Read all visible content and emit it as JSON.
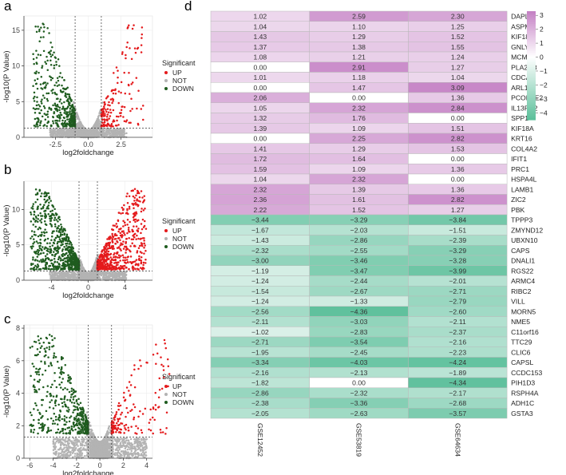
{
  "colors": {
    "up": "#e41a1c",
    "not": "#b3b3b3",
    "down": "#1f5c1f",
    "heat_high": "#c47fc4",
    "heat_mid": "#ffffff",
    "heat_low": "#5bbf9a"
  },
  "chart_data": [
    {
      "type": "scatter",
      "subtype": "volcano",
      "panel_label": "a",
      "xlabel": "log2foldchange",
      "ylabel": "-log10(P Value)",
      "xlim": [
        -4.9,
        4.9
      ],
      "ylim": [
        0,
        17
      ],
      "xticks": [
        -2.5,
        0.0,
        2.5
      ],
      "xtick_labels": [
        "-2.5",
        "0.0",
        "2.5"
      ],
      "yticks": [
        0,
        5,
        10,
        15
      ],
      "ytick_labels": [
        "0",
        "5",
        "10",
        "15"
      ],
      "fc_threshold": 1,
      "p_threshold_line": 1.3,
      "max_abs_x": 4.2,
      "max_y": 16,
      "n_up": 160,
      "n_down": 420,
      "n_not": 1300,
      "legend": {
        "title": "Significant",
        "entries": [
          "UP",
          "NOT",
          "DOWN"
        ]
      }
    },
    {
      "type": "scatter",
      "subtype": "volcano",
      "panel_label": "b",
      "xlabel": "log2foldchange",
      "ylabel": "-log10(P Value)",
      "xlim": [
        -7,
        7
      ],
      "ylim": [
        0,
        14
      ],
      "xticks": [
        -4,
        0,
        4
      ],
      "xtick_labels": [
        "-4",
        "0",
        "4"
      ],
      "yticks": [
        0,
        5,
        10
      ],
      "ytick_labels": [
        "0",
        "5",
        "10"
      ],
      "fc_threshold": 1,
      "p_threshold_line": 1.3,
      "max_abs_x": 6.3,
      "max_y": 13,
      "n_up": 650,
      "n_down": 750,
      "n_not": 1500,
      "legend": {
        "title": "Significant",
        "entries": [
          "UP",
          "NOT",
          "DOWN"
        ]
      }
    },
    {
      "type": "scatter",
      "subtype": "volcano",
      "panel_label": "c",
      "xlabel": "log2foldchange",
      "ylabel": "-log10(P Value)",
      "xlim": [
        -6.5,
        4.5
      ],
      "ylim": [
        0,
        8.2
      ],
      "xticks": [
        -6,
        -4,
        -2,
        0,
        2,
        4
      ],
      "xtick_labels": [
        "-6",
        "-4",
        "-2",
        "0",
        "2",
        "4"
      ],
      "yticks": [
        0,
        2,
        4,
        6,
        8
      ],
      "ytick_labels": [
        "0",
        "2",
        "4",
        "6",
        "8"
      ],
      "fc_threshold": 1,
      "p_threshold_line": 1.3,
      "max_abs_x": 6,
      "max_y": 7.6,
      "n_up": 160,
      "n_down": 480,
      "n_not": 1500,
      "legend": {
        "title": "Significant",
        "entries": [
          "UP",
          "NOT",
          "DOWN"
        ]
      }
    },
    {
      "type": "heatmap",
      "panel_label": "d",
      "columns": [
        "GSE12452",
        "GSE53819",
        "GSE64634"
      ],
      "rows": [
        "DAPL1",
        "ASPM",
        "KIF18B",
        "GNLY",
        "MCM10",
        "PLA2G3",
        "CDCA5",
        "ARL14",
        "PCOLCE2",
        "IL13RA2",
        "SPP1",
        "KIF18A",
        "KRT16",
        "COL4A2",
        "IFIT1",
        "PRC1",
        "HSPA4L",
        "LAMB1",
        "ZIC2",
        "PBK",
        "TPPP3",
        "ZMYND12",
        "UBXN10",
        "CAPS",
        "DNALI1",
        "RGS22",
        "ARMC4",
        "RIBC2",
        "VILL",
        "MORN5",
        "NME5",
        "C11orf16",
        "TTC29",
        "CLIC6",
        "CAPSL",
        "CCDC153",
        "PIH1D3",
        "RSPH4A",
        "ADH1C",
        "GSTA3"
      ],
      "values": [
        [
          1.02,
          2.59,
          2.3
        ],
        [
          1.04,
          1.1,
          1.25
        ],
        [
          1.43,
          1.29,
          1.52
        ],
        [
          1.37,
          1.38,
          1.55
        ],
        [
          1.08,
          1.21,
          1.24
        ],
        [
          0.0,
          2.91,
          1.27
        ],
        [
          1.01,
          1.18,
          1.04
        ],
        [
          0.0,
          1.47,
          3.09
        ],
        [
          2.06,
          0.0,
          1.36
        ],
        [
          1.05,
          2.32,
          2.84
        ],
        [
          1.32,
          1.76,
          0.0
        ],
        [
          1.39,
          1.09,
          1.51
        ],
        [
          0.0,
          2.25,
          2.82
        ],
        [
          1.41,
          1.29,
          1.53
        ],
        [
          1.72,
          1.64,
          0.0
        ],
        [
          1.59,
          1.09,
          1.36
        ],
        [
          1.04,
          2.32,
          0.0
        ],
        [
          2.32,
          1.39,
          1.36
        ],
        [
          2.36,
          1.61,
          2.82
        ],
        [
          2.22,
          1.52,
          1.27
        ],
        [
          -3.44,
          -3.29,
          -3.84
        ],
        [
          -1.67,
          -2.03,
          -1.51
        ],
        [
          -1.43,
          -2.86,
          -2.39
        ],
        [
          -2.32,
          -2.55,
          -3.29
        ],
        [
          -3.0,
          -3.46,
          -3.28
        ],
        [
          -1.19,
          -3.47,
          -3.99
        ],
        [
          -1.24,
          -2.44,
          -2.01
        ],
        [
          -1.54,
          -2.67,
          -2.71
        ],
        [
          -1.24,
          -1.33,
          -2.79
        ],
        [
          -2.56,
          -4.36,
          -2.6
        ],
        [
          -2.11,
          -3.03,
          -2.11
        ],
        [
          -1.02,
          -2.83,
          -2.37
        ],
        [
          -2.71,
          -3.54,
          -2.16
        ],
        [
          -1.95,
          -2.45,
          -2.23
        ],
        [
          -3.34,
          -4.03,
          -4.24
        ],
        [
          -2.16,
          -2.13,
          -1.89
        ],
        [
          -1.82,
          0.0,
          -4.34
        ],
        [
          -2.86,
          -2.32,
          -2.17
        ],
        [
          -2.38,
          -3.36,
          -2.68
        ],
        [
          -2.05,
          -2.63,
          -3.57
        ]
      ],
      "value_labels": [
        [
          "1.02",
          "2.59",
          "2.30"
        ],
        [
          "1.04",
          "1.10",
          "1.25"
        ],
        [
          "1.43",
          "1.29",
          "1.52"
        ],
        [
          "1.37",
          "1.38",
          "1.55"
        ],
        [
          "1.08",
          "1.21",
          "1.24"
        ],
        [
          "0.00",
          "2.91",
          "1.27"
        ],
        [
          "1.01",
          "1.18",
          "1.04"
        ],
        [
          "0.00",
          "1.47",
          "3.09"
        ],
        [
          "2.06",
          "0.00",
          "1.36"
        ],
        [
          "1.05",
          "2.32",
          "2.84"
        ],
        [
          "1.32",
          "1.76",
          "0.00"
        ],
        [
          "1.39",
          "1.09",
          "1.51"
        ],
        [
          "0.00",
          "2.25",
          "2.82"
        ],
        [
          "1.41",
          "1.29",
          "1.53"
        ],
        [
          "1.72",
          "1.64",
          "0.00"
        ],
        [
          "1.59",
          "1.09",
          "1.36"
        ],
        [
          "1.04",
          "2.32",
          "0.00"
        ],
        [
          "2.32",
          "1.39",
          "1.36"
        ],
        [
          "2.36",
          "1.61",
          "2.82"
        ],
        [
          "2.22",
          "1.52",
          "1.27"
        ],
        [
          "−3.44",
          "−3.29",
          "−3.84"
        ],
        [
          "−1.67",
          "−2.03",
          "−1.51"
        ],
        [
          "−1.43",
          "−2.86",
          "−2.39"
        ],
        [
          "−2.32",
          "−2.55",
          "−3.29"
        ],
        [
          "−3.00",
          "−3.46",
          "−3.28"
        ],
        [
          "−1.19",
          "−3.47",
          "−3.99"
        ],
        [
          "−1.24",
          "−2.44",
          "−2.01"
        ],
        [
          "−1.54",
          "−2.67",
          "−2.71"
        ],
        [
          "−1.24",
          "−1.33",
          "−2.79"
        ],
        [
          "−2.56",
          "−4.36",
          "−2.60"
        ],
        [
          "−2.11",
          "−3.03",
          "−2.11"
        ],
        [
          "−1.02",
          "−2.83",
          "−2.37"
        ],
        [
          "−2.71",
          "−3.54",
          "−2.16"
        ],
        [
          "−1.95",
          "−2.45",
          "−2.23"
        ],
        [
          "−3.34",
          "−4.03",
          "−4.24"
        ],
        [
          "−2.16",
          "−2.13",
          "−1.89"
        ],
        [
          "−1.82",
          "0.00",
          "−4.34"
        ],
        [
          "−2.86",
          "−2.32",
          "−2.17"
        ],
        [
          "−2.38",
          "−3.36",
          "−2.68"
        ],
        [
          "−2.05",
          "−2.63",
          "−3.57"
        ]
      ],
      "colorbar": {
        "min": -4.5,
        "max": 3.3,
        "ticks": [
          3,
          2,
          1,
          0,
          -1,
          -2,
          -3,
          -4
        ],
        "tick_labels": [
          "3",
          "2",
          "1",
          "0",
          "−1",
          "−2",
          "−3",
          "−4"
        ]
      }
    }
  ]
}
